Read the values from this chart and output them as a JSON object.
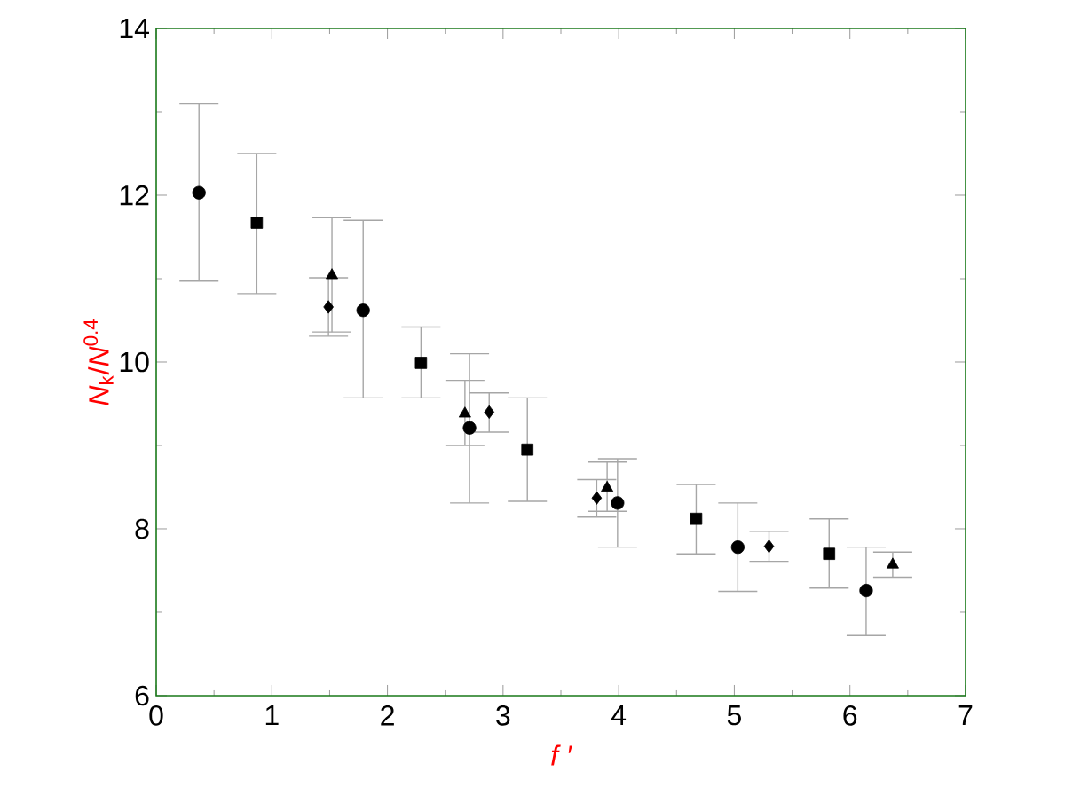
{
  "chart_data": {
    "type": "scatter",
    "xlabel": "f ′",
    "ylabel": "*N*$_{k}$/*N*$^{0.4}$",
    "xlim": [
      0,
      7
    ],
    "ylim": [
      6,
      14
    ],
    "xticks": [
      0,
      1,
      2,
      3,
      4,
      5,
      6,
      7
    ],
    "yticks": [
      6,
      8,
      10,
      12,
      14
    ],
    "grid": false,
    "series": [
      {
        "color": "#000000",
        "marker": "circle",
        "x": [
          0.37,
          1.79,
          2.71,
          3.99,
          5.03,
          6.14
        ],
        "values": [
          12.03,
          10.62,
          9.21,
          8.31,
          7.78,
          7.26
        ],
        "errors": [
          [
            10.97,
            13.1
          ],
          [
            9.57,
            11.7
          ],
          [
            8.31,
            10.1
          ],
          [
            7.78,
            8.84
          ],
          [
            7.25,
            8.31
          ],
          [
            6.72,
            7.78
          ]
        ]
      },
      {
        "color": "#000000",
        "marker": "square",
        "x": [
          0.87,
          2.29,
          3.21,
          4.67,
          5.82
        ],
        "values": [
          11.67,
          9.99,
          8.95,
          8.12,
          7.7
        ],
        "errors": [
          [
            10.82,
            12.5
          ],
          [
            9.57,
            10.42
          ],
          [
            8.33,
            9.57
          ],
          [
            7.7,
            8.53
          ],
          [
            7.29,
            8.12
          ]
        ]
      },
      {
        "color": "#000000",
        "marker": "triangle",
        "x": [
          1.52,
          2.67,
          3.9,
          6.37
        ],
        "values": [
          11.04,
          9.38,
          8.49,
          7.57
        ],
        "errors": [
          [
            10.36,
            11.73
          ],
          [
            9.0,
            9.78
          ],
          [
            8.21,
            8.8
          ],
          [
            7.42,
            7.72
          ]
        ]
      },
      {
        "color": "#000000",
        "marker": "diamond",
        "x": [
          1.49,
          2.88,
          3.81,
          5.3
        ],
        "values": [
          10.66,
          9.4,
          8.37,
          7.79
        ],
        "errors": [
          [
            10.31,
            11.01
          ],
          [
            9.16,
            9.63
          ],
          [
            8.14,
            8.59
          ],
          [
            7.61,
            7.97
          ]
        ]
      }
    ]
  }
}
